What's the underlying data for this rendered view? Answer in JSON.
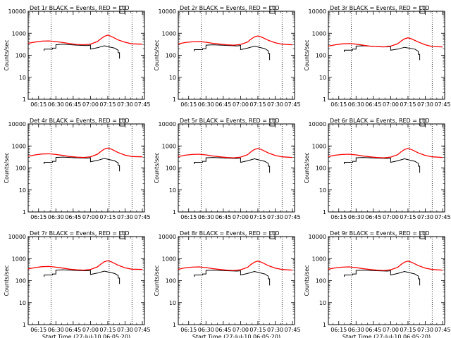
{
  "figure": {
    "xlabel": "Start Time (27-Jul-10 06:05:20)",
    "ylabel": "Counts/sec",
    "x_ticks": [
      "06:15",
      "06:30",
      "06:45",
      "07:00",
      "07:15",
      "07:30",
      "07:45"
    ],
    "y_ticks": [
      "1",
      "10",
      "100",
      "1000",
      "10000"
    ]
  },
  "colors": {
    "events": "#000000",
    "lld": "#ff0000",
    "background": "#ffffff"
  },
  "chart_data": [
    {
      "type": "line",
      "title": "Det 1r BLACK = Events, RED = LLD",
      "xlabel": "Start Time (27-Jul-10 06:05:20)",
      "ylabel": "Counts/sec",
      "xlim": [
        6.1,
        7.78
      ],
      "ylim": [
        1,
        10000
      ],
      "yscale": "log",
      "vlines": [
        6.43,
        7.27,
        7.6
      ],
      "series": [
        {
          "name": "Events",
          "color": "#000000",
          "x": [
            6.33,
            6.33,
            6.45,
            6.45,
            6.5,
            6.5,
            6.6,
            6.8,
            6.95,
            7.0,
            7.0,
            7.1,
            7.2,
            7.35,
            7.4,
            7.4,
            7.42,
            7.42
          ],
          "y": [
            160,
            190,
            190,
            210,
            210,
            300,
            320,
            290,
            275,
            290,
            190,
            220,
            270,
            210,
            170,
            130,
            130,
            70
          ]
        },
        {
          "name": "LLD",
          "color": "#ff0000",
          "x": [
            6.1,
            6.2,
            6.3,
            6.4,
            6.5,
            6.6,
            6.7,
            6.8,
            6.9,
            7.0,
            7.1,
            7.15,
            7.2,
            7.25,
            7.3,
            7.4,
            7.5,
            7.6,
            7.75
          ],
          "y": [
            350,
            400,
            440,
            450,
            420,
            380,
            340,
            310,
            300,
            320,
            420,
            560,
            720,
            820,
            720,
            500,
            390,
            330,
            320
          ]
        }
      ]
    },
    {
      "type": "line",
      "title": "Det 2r BLACK = Events, RED = LLD",
      "xlabel": "Start Time (27-Jul-10 06:05:20)",
      "ylabel": "Counts/sec",
      "xlim": [
        6.1,
        7.78
      ],
      "ylim": [
        1,
        10000
      ],
      "yscale": "log",
      "vlines": [
        6.43,
        7.27,
        7.6
      ],
      "series": [
        {
          "name": "Events",
          "color": "#000000",
          "x": [
            6.33,
            6.33,
            6.45,
            6.45,
            6.5,
            6.5,
            6.6,
            6.8,
            6.95,
            7.0,
            7.0,
            7.1,
            7.2,
            7.35,
            7.4,
            7.4,
            7.42,
            7.42
          ],
          "y": [
            150,
            180,
            180,
            200,
            200,
            290,
            300,
            280,
            265,
            280,
            180,
            210,
            260,
            200,
            160,
            120,
            120,
            60
          ]
        },
        {
          "name": "LLD",
          "color": "#ff0000",
          "x": [
            6.1,
            6.2,
            6.3,
            6.4,
            6.5,
            6.6,
            6.7,
            6.8,
            6.9,
            7.0,
            7.1,
            7.15,
            7.2,
            7.25,
            7.3,
            7.4,
            7.5,
            7.6,
            7.75
          ],
          "y": [
            330,
            380,
            410,
            420,
            390,
            350,
            320,
            300,
            290,
            310,
            400,
            540,
            680,
            760,
            680,
            480,
            370,
            320,
            300
          ]
        }
      ]
    },
    {
      "type": "line",
      "title": "Det 3r BLACK = Events, RED = LLD",
      "xlabel": "Start Time (27-Jul-10 06:05:20)",
      "ylabel": "Counts/sec",
      "xlim": [
        6.1,
        7.78
      ],
      "ylim": [
        1,
        10000
      ],
      "yscale": "log",
      "vlines": [
        6.43,
        7.27,
        7.6
      ],
      "series": [
        {
          "name": "Events",
          "color": "#000000",
          "x": [
            6.33,
            6.33,
            6.45,
            6.45,
            6.5,
            6.5,
            6.6,
            6.8,
            6.95,
            7.0,
            7.0,
            7.1,
            7.2,
            7.35,
            7.4,
            7.4,
            7.42,
            7.42
          ],
          "y": [
            140,
            170,
            170,
            190,
            190,
            260,
            270,
            250,
            240,
            250,
            170,
            190,
            230,
            190,
            150,
            110,
            110,
            60
          ]
        },
        {
          "name": "LLD",
          "color": "#ff0000",
          "x": [
            6.1,
            6.2,
            6.3,
            6.4,
            6.5,
            6.6,
            6.7,
            6.8,
            6.9,
            7.0,
            7.1,
            7.15,
            7.2,
            7.25,
            7.3,
            7.4,
            7.5,
            7.6,
            7.75
          ],
          "y": [
            260,
            300,
            330,
            340,
            320,
            290,
            260,
            250,
            240,
            260,
            330,
            440,
            560,
            620,
            560,
            400,
            300,
            250,
            240
          ]
        }
      ]
    },
    {
      "type": "line",
      "title": "Det 4r BLACK = Events, RED = LLD",
      "xlabel": "Start Time (27-Jul-10 06:05:20)",
      "ylabel": "Counts/sec",
      "xlim": [
        6.1,
        7.78
      ],
      "ylim": [
        1,
        10000
      ],
      "yscale": "log",
      "vlines": [
        6.43,
        7.27,
        7.6
      ],
      "series": [
        {
          "name": "Events",
          "color": "#000000",
          "x": [
            6.33,
            6.33,
            6.45,
            6.45,
            6.5,
            6.5,
            6.6,
            6.8,
            6.95,
            7.0,
            7.0,
            7.1,
            7.2,
            7.35,
            7.4,
            7.4,
            7.42,
            7.42
          ],
          "y": [
            150,
            180,
            180,
            200,
            200,
            300,
            310,
            290,
            280,
            290,
            190,
            220,
            270,
            210,
            170,
            130,
            130,
            70
          ]
        },
        {
          "name": "LLD",
          "color": "#ff0000",
          "x": [
            6.1,
            6.2,
            6.3,
            6.4,
            6.5,
            6.6,
            6.7,
            6.8,
            6.9,
            7.0,
            7.1,
            7.15,
            7.2,
            7.25,
            7.3,
            7.4,
            7.5,
            7.6,
            7.75
          ],
          "y": [
            340,
            390,
            430,
            440,
            410,
            370,
            330,
            310,
            300,
            320,
            420,
            560,
            720,
            800,
            720,
            500,
            380,
            330,
            320
          ]
        }
      ]
    },
    {
      "type": "line",
      "title": "Det 5r BLACK = Events, RED = LLD",
      "xlabel": "Start Time (27-Jul-10 06:05:20)",
      "ylabel": "Counts/sec",
      "xlim": [
        6.1,
        7.78
      ],
      "ylim": [
        1,
        10000
      ],
      "yscale": "log",
      "vlines": [
        6.43,
        7.27,
        7.6
      ],
      "series": [
        {
          "name": "Events",
          "color": "#000000",
          "x": [
            6.33,
            6.33,
            6.45,
            6.45,
            6.5,
            6.5,
            6.6,
            6.8,
            6.95,
            7.0,
            7.0,
            7.1,
            7.2,
            7.35,
            7.4,
            7.4,
            7.42,
            7.42
          ],
          "y": [
            150,
            180,
            180,
            200,
            200,
            290,
            300,
            280,
            270,
            280,
            180,
            210,
            260,
            200,
            160,
            120,
            120,
            60
          ]
        },
        {
          "name": "LLD",
          "color": "#ff0000",
          "x": [
            6.1,
            6.2,
            6.3,
            6.4,
            6.5,
            6.6,
            6.7,
            6.8,
            6.9,
            7.0,
            7.1,
            7.15,
            7.2,
            7.25,
            7.3,
            7.4,
            7.5,
            7.6,
            7.75
          ],
          "y": [
            330,
            380,
            410,
            420,
            390,
            350,
            320,
            300,
            290,
            310,
            400,
            540,
            690,
            770,
            690,
            480,
            370,
            320,
            300
          ]
        }
      ]
    },
    {
      "type": "line",
      "title": "Det 6r BLACK = Events, RED = LLD",
      "xlabel": "Start Time (27-Jul-10 06:05:20)",
      "ylabel": "Counts/sec",
      "xlim": [
        6.1,
        7.78
      ],
      "ylim": [
        1,
        10000
      ],
      "yscale": "log",
      "vlines": [
        6.43,
        7.27,
        7.6
      ],
      "series": [
        {
          "name": "Events",
          "color": "#000000",
          "x": [
            6.33,
            6.33,
            6.45,
            6.45,
            6.5,
            6.5,
            6.6,
            6.8,
            6.95,
            7.0,
            7.0,
            7.1,
            7.2,
            7.35,
            7.4,
            7.4,
            7.42,
            7.42
          ],
          "y": [
            150,
            180,
            180,
            200,
            200,
            290,
            300,
            280,
            270,
            280,
            180,
            210,
            260,
            200,
            160,
            120,
            120,
            60
          ]
        },
        {
          "name": "LLD",
          "color": "#ff0000",
          "x": [
            6.1,
            6.2,
            6.3,
            6.4,
            6.5,
            6.6,
            6.7,
            6.8,
            6.9,
            7.0,
            7.1,
            7.15,
            7.2,
            7.25,
            7.3,
            7.4,
            7.5,
            7.6,
            7.75
          ],
          "y": [
            330,
            380,
            410,
            420,
            390,
            350,
            320,
            300,
            290,
            310,
            400,
            540,
            690,
            770,
            690,
            480,
            370,
            320,
            300
          ]
        }
      ]
    },
    {
      "type": "line",
      "title": "Det 7r BLACK = Events, RED = LLD",
      "xlabel": "Start Time (27-Jul-10 06:05:20)",
      "ylabel": "Counts/sec",
      "xlim": [
        6.1,
        7.78
      ],
      "ylim": [
        1,
        10000
      ],
      "yscale": "log",
      "vlines": [
        6.43,
        7.27,
        7.6
      ],
      "series": [
        {
          "name": "Events",
          "color": "#000000",
          "x": [
            6.33,
            6.33,
            6.45,
            6.45,
            6.5,
            6.5,
            6.6,
            6.8,
            6.95,
            7.0,
            7.0,
            7.1,
            7.2,
            7.35,
            7.4,
            7.4,
            7.42,
            7.42
          ],
          "y": [
            150,
            180,
            180,
            200,
            200,
            300,
            310,
            290,
            280,
            290,
            190,
            220,
            270,
            210,
            170,
            130,
            130,
            70
          ]
        },
        {
          "name": "LLD",
          "color": "#ff0000",
          "x": [
            6.1,
            6.2,
            6.3,
            6.4,
            6.5,
            6.6,
            6.7,
            6.8,
            6.9,
            7.0,
            7.1,
            7.15,
            7.2,
            7.25,
            7.3,
            7.4,
            7.5,
            7.6,
            7.75
          ],
          "y": [
            340,
            390,
            430,
            440,
            410,
            370,
            330,
            310,
            300,
            320,
            420,
            560,
            720,
            800,
            720,
            500,
            380,
            330,
            320
          ]
        }
      ]
    },
    {
      "type": "line",
      "title": "Det 8r BLACK = Events, RED = LLD",
      "xlabel": "Start Time (27-Jul-10 06:05:20)",
      "ylabel": "Counts/sec",
      "xlim": [
        6.1,
        7.78
      ],
      "ylim": [
        1,
        10000
      ],
      "yscale": "log",
      "vlines": [
        6.43,
        7.27,
        7.6
      ],
      "series": [
        {
          "name": "Events",
          "color": "#000000",
          "x": [
            6.33,
            6.33,
            6.45,
            6.45,
            6.5,
            6.5,
            6.6,
            6.8,
            6.95,
            7.0,
            7.0,
            7.1,
            7.2,
            7.35,
            7.4,
            7.4,
            7.42,
            7.42
          ],
          "y": [
            150,
            180,
            180,
            200,
            200,
            290,
            300,
            280,
            270,
            280,
            180,
            210,
            260,
            200,
            160,
            120,
            120,
            60
          ]
        },
        {
          "name": "LLD",
          "color": "#ff0000",
          "x": [
            6.1,
            6.2,
            6.3,
            6.4,
            6.5,
            6.6,
            6.7,
            6.8,
            6.9,
            7.0,
            7.1,
            7.15,
            7.2,
            7.25,
            7.3,
            7.4,
            7.5,
            7.6,
            7.75
          ],
          "y": [
            330,
            380,
            410,
            420,
            390,
            350,
            320,
            300,
            290,
            310,
            400,
            540,
            690,
            770,
            690,
            480,
            370,
            320,
            300
          ]
        }
      ]
    },
    {
      "type": "line",
      "title": "Det 9r BLACK = Events, RED = LLD",
      "xlabel": "Start Time (27-Jul-10 06:05:20)",
      "ylabel": "Counts/sec",
      "xlim": [
        6.1,
        7.78
      ],
      "ylim": [
        1,
        10000
      ],
      "yscale": "log",
      "vlines": [
        6.43,
        7.27,
        7.6
      ],
      "series": [
        {
          "name": "Events",
          "color": "#000000",
          "x": [
            6.33,
            6.33,
            6.45,
            6.45,
            6.5,
            6.5,
            6.6,
            6.8,
            6.95,
            7.0,
            7.0,
            7.1,
            7.2,
            7.35,
            7.4,
            7.4,
            7.42,
            7.42
          ],
          "y": [
            150,
            180,
            180,
            200,
            200,
            290,
            300,
            280,
            270,
            280,
            180,
            210,
            260,
            200,
            160,
            120,
            120,
            60
          ]
        },
        {
          "name": "LLD",
          "color": "#ff0000",
          "x": [
            6.1,
            6.2,
            6.3,
            6.4,
            6.5,
            6.6,
            6.7,
            6.8,
            6.9,
            7.0,
            7.1,
            7.15,
            7.2,
            7.25,
            7.3,
            7.4,
            7.5,
            7.6,
            7.75
          ],
          "y": [
            330,
            380,
            410,
            420,
            390,
            350,
            320,
            300,
            290,
            310,
            400,
            540,
            690,
            770,
            690,
            480,
            370,
            320,
            300
          ]
        }
      ]
    }
  ]
}
